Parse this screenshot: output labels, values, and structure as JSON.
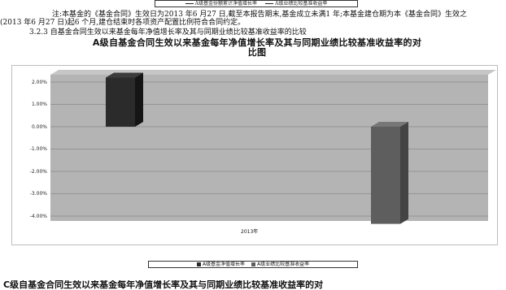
{
  "top_legend": {
    "item1": "A级基金份额累计净值增长率",
    "item2": "A级业绩比较基准收益率"
  },
  "notes": {
    "line1": "注:本基金的《基金合同》生效日为2013 年6 月27 日,截至本报告期末,基金成立未满1 年;本基金建仓期为本《基金合同》生效之",
    "line2": "(2013 年6 月27 日)起6 个月,建仓结束时各项资产配置比例符合合同约定。",
    "section": "3.2.3   自基金合同生效以来基金每年净值增长率及其与同期业绩比较基准收益率的比较"
  },
  "chart_title": {
    "line1": "A级自基金合同生效以来基金每年净值增长率及其与同期业绩比较基准收益率的对",
    "line2": "比图"
  },
  "chart_data": {
    "type": "bar",
    "categories": [
      "2013年"
    ],
    "series": [
      {
        "name": "A级基金净值增长率",
        "values": [
          2.2
        ],
        "color": "#2b2b2b"
      },
      {
        "name": "A级业绩比较基准收益率",
        "values": [
          -4.35
        ],
        "color": "#5e5e5e"
      }
    ],
    "y_ticks": [
      "2.00%",
      "1.00%",
      "0.00%",
      "-1.00%",
      "-2.00%",
      "-3.00%",
      "-4.00%"
    ],
    "ylim": [
      -4.5,
      2.5
    ],
    "grid": true,
    "legend_position": "bottom"
  },
  "bottom_title": "C级自基金合同生效以来基金每年净值增长率及其与同期业绩比较基准收益率的对"
}
